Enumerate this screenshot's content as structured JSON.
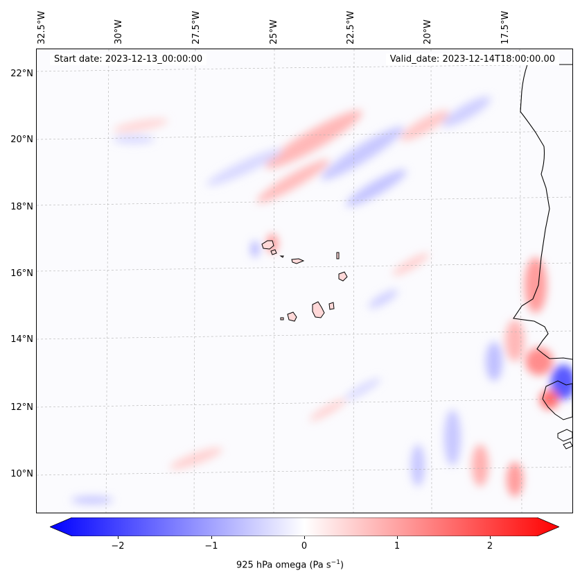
{
  "map": {
    "start_date_text": "Start date: 2023-12-13_00:00:00",
    "valid_date_text": "Valid_date: 2023-12-14T18:00:00.00",
    "lat_ticks": [
      "22°N",
      "20°N",
      "18°N",
      "16°N",
      "14°N",
      "12°N",
      "10°N"
    ],
    "lon_ticks": [
      "32.5°W",
      "30°W",
      "27.5°W",
      "25°W",
      "22.5°W",
      "20°W",
      "17.5°W"
    ],
    "colors": {
      "negative": "#0000ff",
      "zero": "#ffffff",
      "positive": "#ff0000",
      "coast": "#000000",
      "grid": "#b0b0b0"
    }
  },
  "colorbar": {
    "ticks": [
      "−2",
      "−1",
      "0",
      "1",
      "2"
    ],
    "label_text": "925 hPa omega (Pa s",
    "label_sup": "−1",
    "label_close": ")",
    "range": [
      -2.6,
      2.6
    ]
  }
}
